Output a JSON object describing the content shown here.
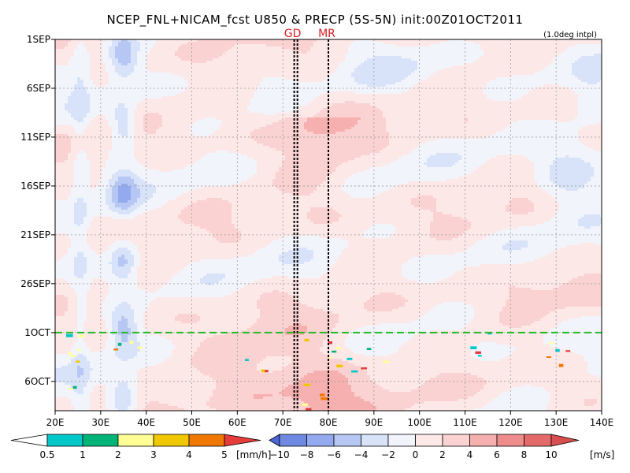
{
  "chart_data": {
    "type": "heatmap",
    "title": "NCEP_FNL+NICAM_fcst U850 & PRECP (5S-5N) init:00Z01OCT2011",
    "subtitle": "(1.0deg intpl)",
    "x_ticks": [
      "20E",
      "30E",
      "40E",
      "50E",
      "60E",
      "70E",
      "80E",
      "90E",
      "100E",
      "110E",
      "120E",
      "130E",
      "140E"
    ],
    "x_values": [
      20,
      30,
      40,
      50,
      60,
      70,
      80,
      90,
      100,
      110,
      120,
      130,
      140
    ],
    "xlim": [
      20,
      140
    ],
    "y_ticks": [
      "1SEP",
      "6SEP",
      "11SEP",
      "16SEP",
      "21SEP",
      "26SEP",
      "1OCT",
      "6OCT"
    ],
    "y_values": [
      0,
      5,
      10,
      15,
      20,
      25,
      30,
      35
    ],
    "ylim": [
      0,
      38
    ],
    "grid": true,
    "forecast_init_day": 30,
    "markers": [
      {
        "label": "GD",
        "lon": 72.5
      },
      {
        "label": "",
        "lon": 73.2
      },
      {
        "label": "MR",
        "lon": 80
      }
    ],
    "u850_colorbar": {
      "units": "[m/s]",
      "levels": [
        -10,
        -8,
        -6,
        -4,
        -2,
        0,
        2,
        4,
        6,
        8,
        10
      ],
      "labels": [
        "−10",
        "−8",
        "−6",
        "−4",
        "−2",
        "0",
        "2",
        "4",
        "6",
        "8",
        "10"
      ],
      "colors": [
        "#4a66d6",
        "#6f89e3",
        "#93aaee",
        "#b6c7f4",
        "#d8e2f8",
        "#f2f4fc",
        "#fde8e8",
        "#fbd2d2",
        "#f6b0b0",
        "#ee8c8c",
        "#e46a6a",
        "#d84d4d"
      ]
    },
    "precip_colorbar": {
      "units": "[mm/h]",
      "levels": [
        0.5,
        1,
        2,
        3,
        4,
        5
      ],
      "labels": [
        "0.5",
        "1",
        "2",
        "3",
        "4",
        "5"
      ],
      "colors": [
        "#ffffff",
        "#00c8c8",
        "#00b478",
        "#ffff96",
        "#f0c800",
        "#f07800",
        "#e63c3c"
      ]
    }
  }
}
